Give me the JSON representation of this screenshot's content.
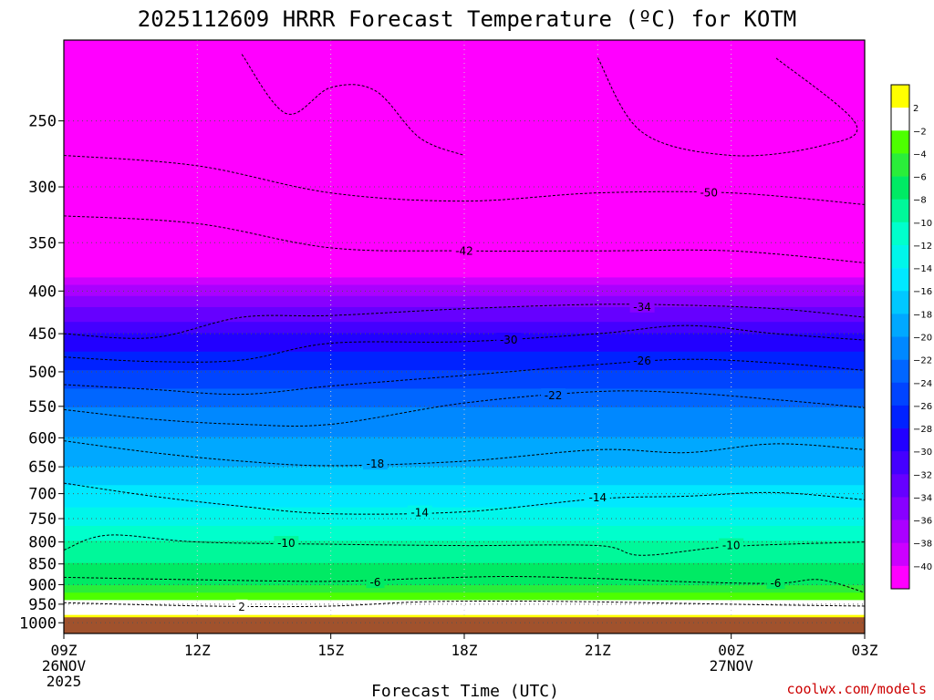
{
  "chart_data": {
    "type": "heatmap",
    "title": "2025112609 HRRR Forecast Temperature (ºC) for KOTM",
    "xlabel": "Forecast Time (UTC)",
    "ylabel": "",
    "credit": "coolwx.com/models",
    "x_ticks": [
      {
        "hour": 0,
        "lines": [
          "09Z",
          "26NOV",
          "2025"
        ]
      },
      {
        "hour": 3,
        "lines": [
          "12Z"
        ]
      },
      {
        "hour": 6,
        "lines": [
          "15Z"
        ]
      },
      {
        "hour": 9,
        "lines": [
          "18Z"
        ]
      },
      {
        "hour": 12,
        "lines": [
          "21Z"
        ]
      },
      {
        "hour": 15,
        "lines": [
          "00Z",
          "27NOV"
        ]
      },
      {
        "hour": 18,
        "lines": [
          "03Z"
        ]
      }
    ],
    "xlim": [
      0,
      18
    ],
    "y_axis": {
      "scale": "log-pressure",
      "range_hpa": [
        1030,
        200
      ],
      "reversed": true,
      "ticks": [
        250,
        300,
        350,
        400,
        450,
        500,
        550,
        600,
        650,
        700,
        750,
        800,
        850,
        900,
        950,
        1000
      ]
    },
    "grid": true,
    "surface_pressure_hpa": 985,
    "colorbar": {
      "placement": "right",
      "levels": [
        2,
        -2,
        -4,
        -6,
        -8,
        -10,
        -12,
        -14,
        -16,
        -18,
        -20,
        -22,
        -24,
        -26,
        -28,
        -30,
        -32,
        -34,
        -36,
        -38,
        -40
      ],
      "colors": [
        "#ffff00",
        "#ffffff",
        "#4dff00",
        "#2aee3a",
        "#00ea64",
        "#00f89a",
        "#00ffcc",
        "#00f6ea",
        "#00e8ff",
        "#00c8ff",
        "#00a8ff",
        "#0088ff",
        "#0066ff",
        "#0044ff",
        "#0022ff",
        "#2200ff",
        "#4400ff",
        "#6600ff",
        "#8800ff",
        "#aa00ff",
        "#cc00ff",
        "#ff00ff"
      ]
    },
    "temperature_profile": [
      {
        "p": 985,
        "t": 3
      },
      {
        "p": 960,
        "t": 0
      },
      {
        "p": 930,
        "t": -3
      },
      {
        "p": 900,
        "t": -6
      },
      {
        "p": 850,
        "t": -8
      },
      {
        "p": 800,
        "t": -10
      },
      {
        "p": 750,
        "t": -13
      },
      {
        "p": 700,
        "t": -15
      },
      {
        "p": 650,
        "t": -18
      },
      {
        "p": 600,
        "t": -20
      },
      {
        "p": 550,
        "t": -22
      },
      {
        "p": 500,
        "t": -26
      },
      {
        "p": 450,
        "t": -30
      },
      {
        "p": 420,
        "t": -34
      },
      {
        "p": 400,
        "t": -37
      },
      {
        "p": 380,
        "t": -41
      },
      {
        "p": 350,
        "t": -44
      },
      {
        "p": 300,
        "t": -50
      },
      {
        "p": 250,
        "t": -54
      },
      {
        "p": 200,
        "t": -56
      }
    ],
    "contours": [
      {
        "label": "2",
        "points": [
          [
            0,
            946
          ],
          [
            2,
            952
          ],
          [
            4,
            956
          ],
          [
            6,
            955
          ],
          [
            8,
            944
          ],
          [
            10,
            942
          ],
          [
            12,
            944
          ],
          [
            14,
            948
          ],
          [
            16,
            952
          ],
          [
            18,
            955
          ]
        ]
      },
      {
        "label": "-6",
        "points": [
          [
            0,
            882
          ],
          [
            3,
            888
          ],
          [
            6,
            892
          ],
          [
            8,
            885
          ],
          [
            10,
            880
          ],
          [
            12,
            885
          ],
          [
            14,
            893
          ],
          [
            16,
            897
          ],
          [
            17,
            888
          ],
          [
            18,
            920
          ]
        ]
      },
      {
        "label": "-10",
        "points": [
          [
            0,
            818
          ],
          [
            1,
            785
          ],
          [
            3,
            800
          ],
          [
            6,
            805
          ],
          [
            9,
            808
          ],
          [
            12,
            808
          ],
          [
            13,
            830
          ],
          [
            15,
            810
          ],
          [
            18,
            800
          ]
        ]
      },
      {
        "label": "-14",
        "points": [
          [
            0,
            680
          ],
          [
            2,
            705
          ],
          [
            4,
            725
          ],
          [
            6,
            740
          ],
          [
            9,
            736
          ],
          [
            12,
            710
          ],
          [
            14,
            705
          ],
          [
            16,
            698
          ],
          [
            18,
            712
          ]
        ]
      },
      {
        "label": "-18",
        "points": [
          [
            0,
            605
          ],
          [
            2,
            625
          ],
          [
            4,
            640
          ],
          [
            6,
            648
          ],
          [
            9,
            640
          ],
          [
            12,
            620
          ],
          [
            14,
            625
          ],
          [
            16,
            610
          ],
          [
            18,
            620
          ]
        ]
      },
      {
        "label": "-22",
        "points": [
          [
            0,
            555
          ],
          [
            2,
            570
          ],
          [
            4,
            578
          ],
          [
            6,
            578
          ],
          [
            9,
            545
          ],
          [
            12,
            528
          ],
          [
            14,
            530
          ],
          [
            16,
            540
          ],
          [
            18,
            552
          ]
        ]
      },
      {
        "label": "-26",
        "points": [
          [
            0,
            518
          ],
          [
            2,
            525
          ],
          [
            4,
            532
          ],
          [
            6,
            520
          ],
          [
            9,
            505
          ],
          [
            12,
            490
          ],
          [
            14,
            483
          ],
          [
            16,
            488
          ],
          [
            18,
            498
          ]
        ]
      },
      {
        "label": "-30",
        "points": [
          [
            0,
            480
          ],
          [
            2,
            486
          ],
          [
            4,
            484
          ],
          [
            6,
            462
          ],
          [
            9,
            460
          ],
          [
            12,
            450
          ],
          [
            14,
            440
          ],
          [
            16,
            450
          ],
          [
            18,
            458
          ]
        ]
      },
      {
        "label": "-34",
        "points": [
          [
            0,
            450
          ],
          [
            2,
            455
          ],
          [
            4,
            430
          ],
          [
            6,
            428
          ],
          [
            9,
            420
          ],
          [
            12,
            415
          ],
          [
            14,
            416
          ],
          [
            16,
            420
          ],
          [
            18,
            430
          ]
        ]
      },
      {
        "label": "-42",
        "points": [
          [
            0,
            325
          ],
          [
            3,
            332
          ],
          [
            6,
            355
          ],
          [
            9,
            358
          ],
          [
            12,
            358
          ],
          [
            15,
            358
          ],
          [
            18,
            370
          ]
        ]
      },
      {
        "label": "-50",
        "points": [
          [
            0,
            275
          ],
          [
            3,
            283
          ],
          [
            6,
            305
          ],
          [
            9,
            312
          ],
          [
            12,
            305
          ],
          [
            15,
            305
          ],
          [
            18,
            315
          ]
        ]
      },
      {
        "label": "",
        "points": [
          [
            4,
            208
          ],
          [
            5,
            245
          ],
          [
            6,
            228
          ],
          [
            7,
            230
          ],
          [
            8,
            262
          ],
          [
            9,
            275
          ]
        ]
      },
      {
        "label": "",
        "points": [
          [
            12,
            210
          ],
          [
            13,
            258
          ],
          [
            15,
            275
          ],
          [
            17,
            268
          ],
          [
            17.8,
            252
          ],
          [
            16,
            210
          ]
        ]
      }
    ],
    "contour_labels": [
      {
        "label": "2",
        "hour": 4,
        "p": 957
      },
      {
        "label": "-6",
        "hour": 7,
        "p": 895
      },
      {
        "label": "-10",
        "hour": 5,
        "p": 803
      },
      {
        "label": "-14",
        "hour": 8,
        "p": 738
      },
      {
        "label": "-18",
        "hour": 7,
        "p": 645
      },
      {
        "label": "-22",
        "hour": 11,
        "p": 534
      },
      {
        "label": "-26",
        "hour": 13,
        "p": 485
      },
      {
        "label": "-30",
        "hour": 10,
        "p": 458
      },
      {
        "label": "-34",
        "hour": 13,
        "p": 418
      },
      {
        "label": "-42",
        "hour": 9,
        "p": 358
      },
      {
        "label": "-50",
        "hour": 14.5,
        "p": 305
      },
      {
        "label": "-14",
        "hour": 12,
        "p": 708
      },
      {
        "label": "-10",
        "hour": 15,
        "p": 808
      },
      {
        "label": "-6",
        "hour": 16,
        "p": 897
      }
    ]
  }
}
